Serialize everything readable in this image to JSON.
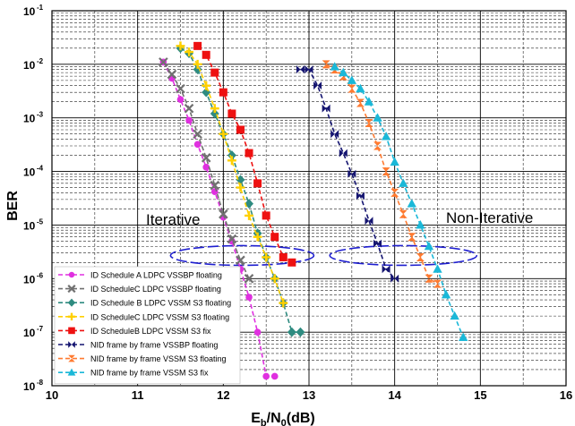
{
  "chart_data": {
    "type": "line",
    "xlabel": "Eb/N0(dB)",
    "ylabel": "BER",
    "xlim": [
      10,
      16
    ],
    "ylim_log10": [
      -8,
      -1
    ],
    "yscale": "log",
    "grid": true,
    "legend_position": "bottom-left",
    "x_ticks": [
      "10",
      "11",
      "12",
      "13",
      "14",
      "15",
      "16"
    ],
    "y_ticks": [
      {
        "base": "10",
        "exp": "-8"
      },
      {
        "base": "10",
        "exp": "-7"
      },
      {
        "base": "10",
        "exp": "-6"
      },
      {
        "base": "10",
        "exp": "-5"
      },
      {
        "base": "10",
        "exp": "-4"
      },
      {
        "base": "10",
        "exp": "-3"
      },
      {
        "base": "10",
        "exp": "-2"
      },
      {
        "base": "10",
        "exp": "-1"
      }
    ],
    "annotations": [
      "Iterative",
      "Non-Iterative"
    ],
    "series": [
      {
        "name": "ID Schedule A LDPC VSSBP floating",
        "color": "#e030e0",
        "marker": "circle",
        "x": [
          11.3,
          11.4,
          11.5,
          11.6,
          11.7,
          11.8,
          11.9,
          12.0,
          12.1,
          12.2,
          12.3,
          12.4,
          12.5,
          12.6
        ],
        "y": [
          0.011,
          0.0055,
          0.0022,
          0.0009,
          0.00032,
          0.00012,
          4.2e-05,
          1.4e-05,
          5e-06,
          1.5e-06,
          4.5e-07,
          1e-07,
          1.5e-08,
          1.5e-08
        ]
      },
      {
        "name": "ID ScheduleC LDPC VSSBP floating",
        "color": "#707070",
        "marker": "x",
        "x": [
          11.3,
          11.4,
          11.5,
          11.6,
          11.7,
          11.8,
          11.9,
          12.0,
          12.1,
          12.2,
          12.3
        ],
        "y": [
          0.011,
          0.0065,
          0.0035,
          0.0015,
          0.0005,
          0.00018,
          5.5e-05,
          1.6e-05,
          5.5e-06,
          2.2e-06,
          1e-06
        ]
      },
      {
        "name": "ID Schedule B LDPC VSSM S3 floating",
        "color": "#2e8b80",
        "marker": "diamond",
        "x": [
          11.5,
          11.6,
          11.7,
          11.8,
          11.9,
          12.0,
          12.1,
          12.2,
          12.3,
          12.4,
          12.5,
          12.6,
          12.7,
          12.8,
          12.9
        ],
        "y": [
          0.02,
          0.016,
          0.008,
          0.003,
          0.0012,
          0.0005,
          0.0002,
          7e-05,
          2.5e-05,
          7e-06,
          2.5e-06,
          1e-06,
          3.5e-07,
          1e-07,
          1e-07
        ]
      },
      {
        "name": "ID ScheduleC LDPC VSSM S3 floating",
        "color": "#ffd000",
        "marker": "plus",
        "x": [
          11.5,
          11.6,
          11.7,
          11.8,
          11.9,
          12.0,
          12.1,
          12.2,
          12.3,
          12.4,
          12.5,
          12.6,
          12.7
        ],
        "y": [
          0.022,
          0.017,
          0.01,
          0.004,
          0.0015,
          0.0005,
          0.00016,
          5e-05,
          1.5e-05,
          6e-06,
          2.5e-06,
          1e-06,
          3.5e-07
        ]
      },
      {
        "name": "ID ScheduleB LDPC VSSM S3 fix",
        "color": "#ee1111",
        "marker": "square",
        "x": [
          11.7,
          11.8,
          11.9,
          12.0,
          12.1,
          12.2,
          12.3,
          12.4,
          12.5,
          12.6,
          12.7,
          12.8
        ],
        "y": [
          0.022,
          0.015,
          0.007,
          0.003,
          0.0012,
          0.0006,
          0.00022,
          6e-05,
          1.5e-05,
          6e-06,
          2.5e-06,
          2e-06
        ]
      },
      {
        "name": "NID frame by frame VSSBP floating",
        "color": "#141470",
        "marker": "bowtie",
        "x": [
          12.9,
          13.0,
          13.1,
          13.2,
          13.3,
          13.4,
          13.5,
          13.6,
          13.7,
          13.8,
          13.9,
          14.0
        ],
        "y": [
          0.008,
          0.008,
          0.004,
          0.0015,
          0.0005,
          0.00022,
          9e-05,
          3.5e-05,
          1.2e-05,
          4.5e-06,
          1.5e-06,
          1e-06
        ]
      },
      {
        "name": "NID frame by frame VSSM S3 floating",
        "color": "#ff7a30",
        "marker": "hourglass",
        "x": [
          13.2,
          13.3,
          13.4,
          13.5,
          13.6,
          13.7,
          13.8,
          13.9,
          14.0,
          14.1,
          14.2,
          14.3,
          14.4,
          14.5
        ],
        "y": [
          0.01,
          0.008,
          0.006,
          0.0035,
          0.0019,
          0.0008,
          0.0003,
          0.0001,
          4e-05,
          1.6e-05,
          6e-06,
          2.5e-06,
          1e-06,
          8e-07
        ]
      },
      {
        "name": "NID frame by frame VSSM S3 fix",
        "color": "#1ab8d8",
        "marker": "triangle",
        "x": [
          13.3,
          13.4,
          13.5,
          13.6,
          13.7,
          13.8,
          13.9,
          14.0,
          14.1,
          14.2,
          14.3,
          14.4,
          14.5,
          14.6,
          14.7,
          14.8
        ],
        "y": [
          0.009,
          0.007,
          0.005,
          0.0035,
          0.002,
          0.001,
          0.00045,
          0.00015,
          6e-05,
          2.5e-05,
          1e-05,
          4e-06,
          1.5e-06,
          5e-07,
          2e-07,
          8e-08
        ]
      }
    ]
  }
}
